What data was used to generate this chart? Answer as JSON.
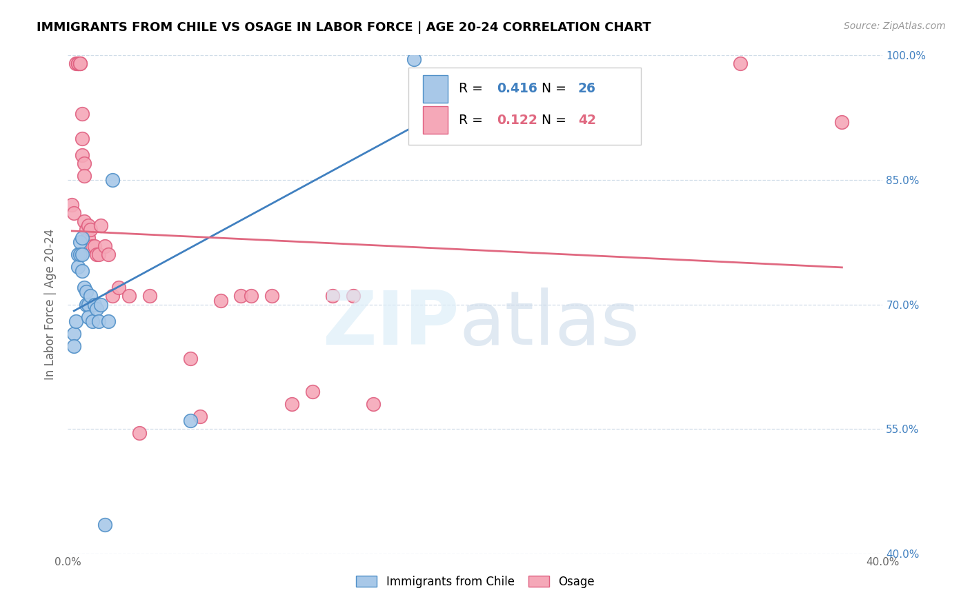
{
  "title": "IMMIGRANTS FROM CHILE VS OSAGE IN LABOR FORCE | AGE 20-24 CORRELATION CHART",
  "source": "Source: ZipAtlas.com",
  "ylabel": "In Labor Force | Age 20-24",
  "xmin": 0.0,
  "xmax": 0.4,
  "ymin": 0.4,
  "ymax": 1.0,
  "ytick_values": [
    0.4,
    0.55,
    0.7,
    0.85,
    1.0
  ],
  "ytick_labels": [
    "40.0%",
    "55.0%",
    "70.0%",
    "85.0%",
    "100.0%"
  ],
  "xtick_values": [
    0.0,
    0.05,
    0.1,
    0.15,
    0.2,
    0.25,
    0.3,
    0.35,
    0.4
  ],
  "xtick_labels": [
    "0.0%",
    "",
    "",
    "",
    "",
    "",
    "",
    "",
    "40.0%"
  ],
  "chile_R": 0.416,
  "chile_N": 26,
  "osage_R": 0.122,
  "osage_N": 42,
  "chile_color": "#a8c8e8",
  "osage_color": "#f5a8b8",
  "chile_edge_color": "#5090c8",
  "osage_edge_color": "#e06080",
  "chile_line_color": "#4080c0",
  "osage_line_color": "#e06880",
  "chile_x": [
    0.003,
    0.003,
    0.004,
    0.005,
    0.005,
    0.006,
    0.006,
    0.007,
    0.007,
    0.007,
    0.008,
    0.009,
    0.009,
    0.01,
    0.01,
    0.011,
    0.012,
    0.013,
    0.014,
    0.015,
    0.016,
    0.018,
    0.02,
    0.022,
    0.06,
    0.17
  ],
  "chile_y": [
    0.665,
    0.65,
    0.68,
    0.76,
    0.745,
    0.775,
    0.76,
    0.78,
    0.76,
    0.74,
    0.72,
    0.715,
    0.7,
    0.7,
    0.685,
    0.71,
    0.68,
    0.7,
    0.695,
    0.68,
    0.7,
    0.435,
    0.68,
    0.85,
    0.56,
    0.995
  ],
  "osage_x": [
    0.002,
    0.003,
    0.004,
    0.005,
    0.005,
    0.006,
    0.006,
    0.007,
    0.007,
    0.007,
    0.008,
    0.008,
    0.008,
    0.009,
    0.01,
    0.01,
    0.011,
    0.012,
    0.013,
    0.014,
    0.015,
    0.016,
    0.018,
    0.02,
    0.022,
    0.025,
    0.03,
    0.035,
    0.04,
    0.06,
    0.065,
    0.075,
    0.085,
    0.09,
    0.1,
    0.11,
    0.12,
    0.13,
    0.14,
    0.15,
    0.33,
    0.38
  ],
  "osage_y": [
    0.82,
    0.81,
    0.99,
    0.99,
    0.99,
    0.99,
    0.99,
    0.93,
    0.9,
    0.88,
    0.87,
    0.855,
    0.8,
    0.79,
    0.795,
    0.78,
    0.79,
    0.77,
    0.77,
    0.76,
    0.76,
    0.795,
    0.77,
    0.76,
    0.71,
    0.72,
    0.71,
    0.545,
    0.71,
    0.635,
    0.565,
    0.705,
    0.71,
    0.71,
    0.71,
    0.58,
    0.595,
    0.71,
    0.71,
    0.58,
    0.99,
    0.92
  ]
}
